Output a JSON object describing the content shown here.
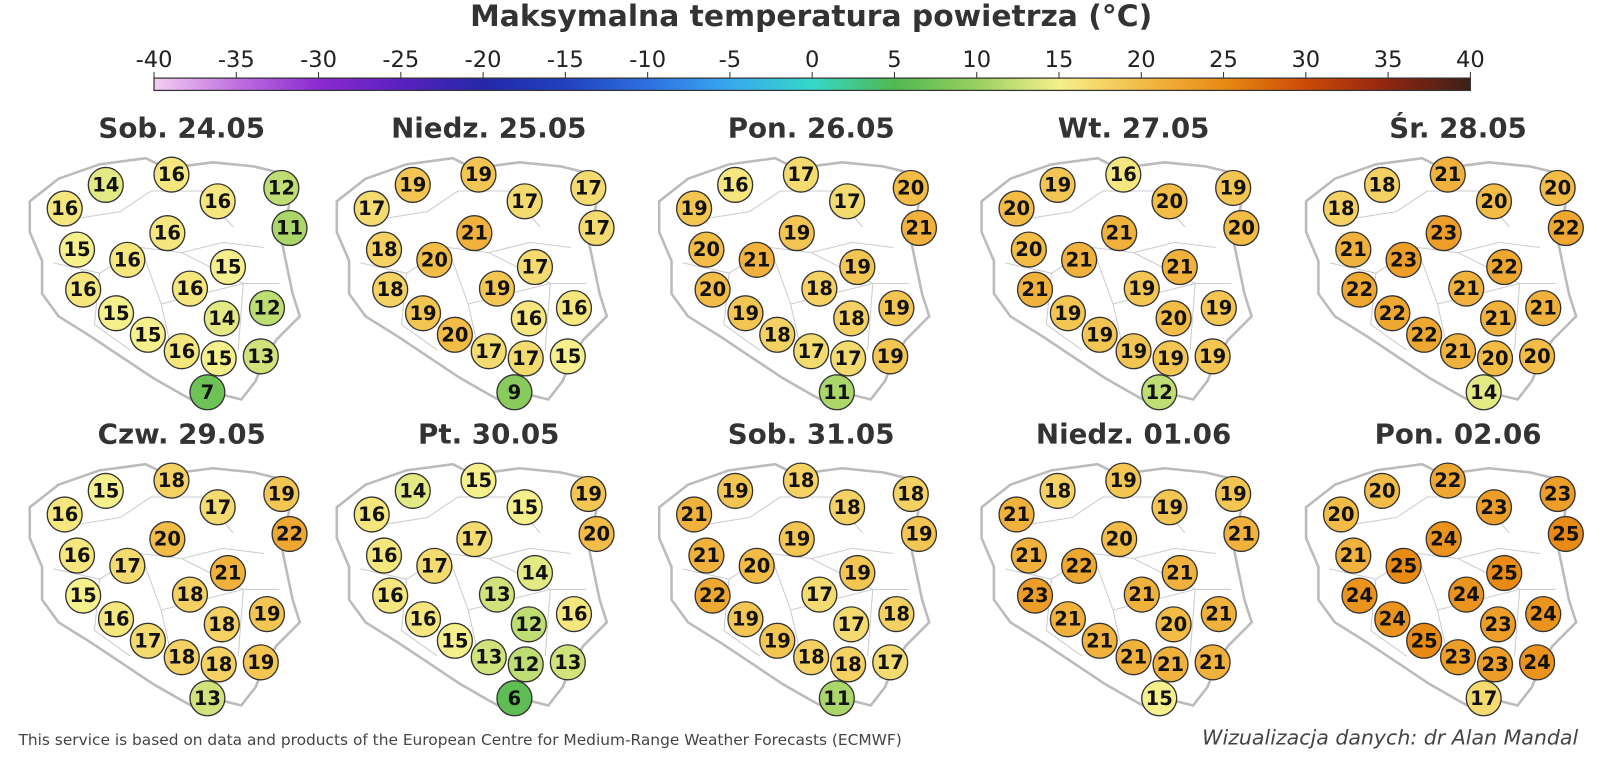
{
  "title": "Maksymalna temperatura powietrza (°C)",
  "colorbar": {
    "ticks": [
      -40,
      -35,
      -30,
      -25,
      -20,
      -15,
      -10,
      -5,
      0,
      5,
      10,
      15,
      20,
      25,
      30,
      35,
      40
    ],
    "colors": [
      "#f4cff0",
      "#c070e0",
      "#8a2ad0",
      "#5a20c0",
      "#2428a8",
      "#2040c0",
      "#2e70e0",
      "#38a8f0",
      "#34d8c8",
      "#50b850",
      "#98d060",
      "#f6f08c",
      "#f2bc46",
      "#e88a14",
      "#cc4a06",
      "#902412",
      "#3c2018"
    ]
  },
  "maps": [
    {
      "label": "Sob. 24.05",
      "values": [
        16,
        14,
        16,
        16,
        12,
        11,
        15,
        16,
        16,
        16,
        16,
        15,
        15,
        15,
        14,
        12,
        16,
        15,
        13,
        7
      ]
    },
    {
      "label": "Niedz. 25.05",
      "values": [
        17,
        19,
        19,
        17,
        17,
        17,
        18,
        20,
        21,
        18,
        19,
        17,
        19,
        20,
        16,
        16,
        17,
        17,
        15,
        9
      ]
    },
    {
      "label": "Pon. 26.05",
      "values": [
        19,
        16,
        17,
        17,
        20,
        21,
        20,
        21,
        19,
        20,
        18,
        19,
        19,
        18,
        18,
        19,
        17,
        17,
        19,
        11
      ]
    },
    {
      "label": "Wt. 27.05",
      "values": [
        20,
        19,
        16,
        20,
        19,
        20,
        20,
        21,
        21,
        21,
        19,
        21,
        19,
        19,
        20,
        19,
        19,
        19,
        19,
        12
      ]
    },
    {
      "label": "Śr. 28.05",
      "values": [
        18,
        18,
        21,
        20,
        20,
        22,
        21,
        23,
        23,
        22,
        21,
        22,
        22,
        22,
        21,
        21,
        21,
        20,
        20,
        14
      ]
    },
    {
      "label": "Czw. 29.05",
      "values": [
        16,
        15,
        18,
        17,
        19,
        22,
        16,
        17,
        20,
        15,
        18,
        21,
        16,
        17,
        18,
        19,
        18,
        18,
        19,
        13
      ]
    },
    {
      "label": "Pt. 30.05",
      "values": [
        16,
        14,
        15,
        15,
        19,
        20,
        16,
        17,
        17,
        16,
        13,
        14,
        16,
        15,
        12,
        16,
        13,
        12,
        13,
        6
      ]
    },
    {
      "label": "Sob. 31.05",
      "values": [
        21,
        19,
        18,
        18,
        18,
        19,
        21,
        20,
        19,
        22,
        17,
        19,
        19,
        19,
        17,
        18,
        18,
        18,
        17,
        11
      ]
    },
    {
      "label": "Niedz. 01.06",
      "values": [
        21,
        18,
        19,
        19,
        19,
        21,
        21,
        22,
        20,
        23,
        21,
        21,
        21,
        21,
        20,
        21,
        21,
        21,
        21,
        15
      ]
    },
    {
      "label": "Pon. 02.06",
      "values": [
        20,
        20,
        22,
        23,
        23,
        25,
        21,
        25,
        24,
        24,
        24,
        25,
        24,
        25,
        23,
        24,
        23,
        23,
        24,
        17
      ]
    }
  ],
  "footer": {
    "source": "This service is based on data and products of the European Centre for Medium-Range Weather Forecasts (ECMWF)",
    "credit": "Wizualizacja danych: dr Alan Mandal"
  }
}
